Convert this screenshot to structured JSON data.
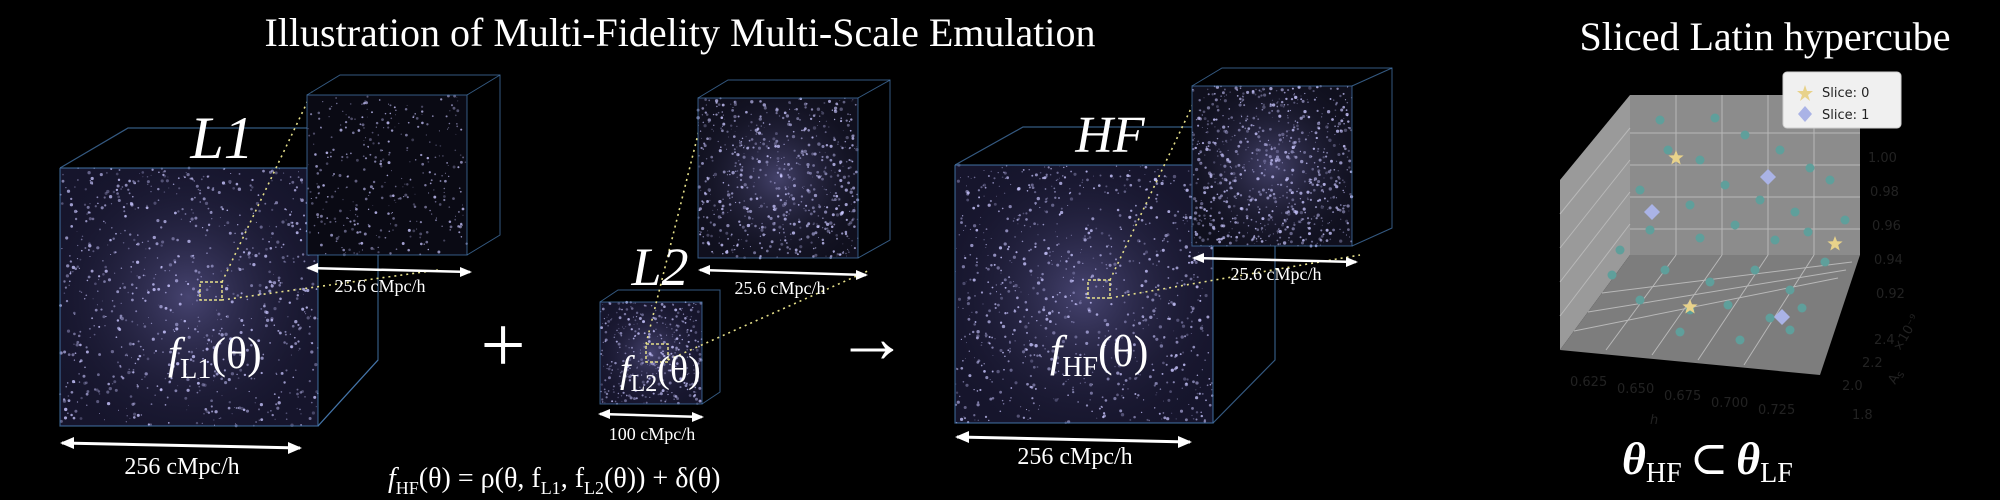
{
  "titles": {
    "main": "Illustration of Multi-Fidelity Multi-Scale Emulation",
    "side": "Sliced Latin hypercube"
  },
  "labels": {
    "L1": "L1",
    "L2": "L2",
    "HF": "HF",
    "f_symbol": "f",
    "theta_arg": "(θ)",
    "sub_L1": "L1",
    "sub_L2": "L2",
    "sub_HF": "HF",
    "plus": "+",
    "arrow": "→"
  },
  "scales": {
    "big_L1": "256 cMpc/h",
    "zoom_L1": "25.6 cMpc/h",
    "box_L2": "100 cMpc/h",
    "zoom_L2": "25.6 cMpc/h",
    "big_HF": "256 cMpc/h",
    "zoom_HF": "25.6 cMpc/h"
  },
  "equation": {
    "lhs": "f",
    "lhs_sub": "HF",
    "mid1": "(θ) = ρ(θ, f",
    "sub1": "L1",
    "mid2": ", f",
    "sub2": "L2",
    "rhs": "(θ)) + δ(θ)"
  },
  "subset": {
    "theta": "θ",
    "sub_hf": "HF",
    "op": "⊂",
    "sub_lf": "LF"
  },
  "scatter3d": {
    "legend": [
      {
        "label": "Slice: 0",
        "marker": "star",
        "color": "#e8d28a"
      },
      {
        "label": "Slice: 1",
        "marker": "diamond",
        "color": "#aab3e6"
      }
    ],
    "x_axis": {
      "label": "h",
      "ticks": [
        "0.625",
        "0.650",
        "0.675",
        "0.700",
        "0.725"
      ]
    },
    "y_axis": {
      "label": "A",
      "sub": "s",
      "exponent": "×10⁻⁹",
      "ticks": [
        "1.8",
        "2.0",
        "2.2",
        "2.4"
      ]
    },
    "z_axis": {
      "ticks": [
        "0.92",
        "0.94",
        "0.96",
        "0.98",
        "1.00"
      ]
    },
    "point_color": "#5f9f9b"
  },
  "colors": {
    "particles": "#c9c6ff",
    "cube_edge": "#4a7fb8",
    "dotted": "#e6e08a",
    "axes_panel": "#8a8a8a"
  }
}
